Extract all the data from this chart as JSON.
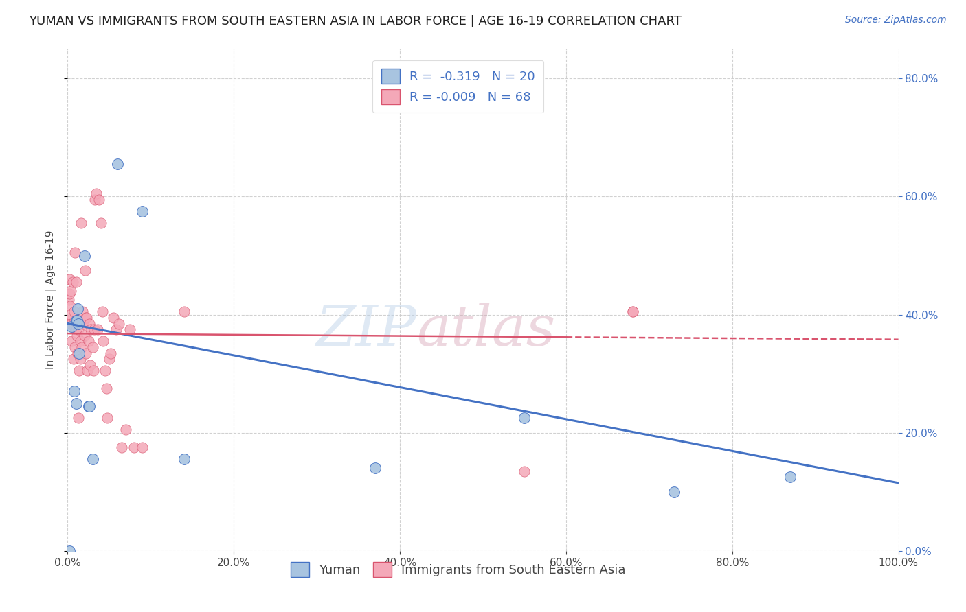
{
  "title": "YUMAN VS IMMIGRANTS FROM SOUTH EASTERN ASIA IN LABOR FORCE | AGE 16-19 CORRELATION CHART",
  "source": "Source: ZipAtlas.com",
  "ylabel": "In Labor Force | Age 16-19",
  "xlim": [
    0.0,
    1.0
  ],
  "ylim": [
    0.0,
    0.85
  ],
  "yuman_r": "-0.319",
  "yuman_n": "20",
  "immigrants_r": "-0.009",
  "immigrants_n": "68",
  "yuman_color": "#a8c4e0",
  "immigrants_color": "#f4a8b8",
  "yuman_line_color": "#4472c4",
  "immigrants_line_color": "#d9546e",
  "background_color": "#ffffff",
  "grid_color": "#cccccc",
  "yuman_scatter": [
    [
      0.002,
      0.0
    ],
    [
      0.005,
      0.38
    ],
    [
      0.008,
      0.27
    ],
    [
      0.01,
      0.25
    ],
    [
      0.01,
      0.39
    ],
    [
      0.011,
      0.39
    ],
    [
      0.012,
      0.41
    ],
    [
      0.013,
      0.385
    ],
    [
      0.014,
      0.335
    ],
    [
      0.02,
      0.5
    ],
    [
      0.025,
      0.245
    ],
    [
      0.026,
      0.245
    ],
    [
      0.03,
      0.155
    ],
    [
      0.06,
      0.655
    ],
    [
      0.09,
      0.575
    ],
    [
      0.14,
      0.155
    ],
    [
      0.37,
      0.14
    ],
    [
      0.55,
      0.225
    ],
    [
      0.73,
      0.1
    ],
    [
      0.87,
      0.125
    ]
  ],
  "immigrants_scatter": [
    [
      0.0,
      0.39
    ],
    [
      0.001,
      0.425
    ],
    [
      0.002,
      0.435
    ],
    [
      0.002,
      0.46
    ],
    [
      0.003,
      0.385
    ],
    [
      0.003,
      0.415
    ],
    [
      0.004,
      0.44
    ],
    [
      0.004,
      0.4
    ],
    [
      0.005,
      0.355
    ],
    [
      0.005,
      0.385
    ],
    [
      0.006,
      0.455
    ],
    [
      0.007,
      0.385
    ],
    [
      0.007,
      0.325
    ],
    [
      0.008,
      0.405
    ],
    [
      0.008,
      0.38
    ],
    [
      0.009,
      0.345
    ],
    [
      0.009,
      0.505
    ],
    [
      0.01,
      0.375
    ],
    [
      0.01,
      0.455
    ],
    [
      0.011,
      0.365
    ],
    [
      0.012,
      0.385
    ],
    [
      0.012,
      0.335
    ],
    [
      0.013,
      0.375
    ],
    [
      0.013,
      0.225
    ],
    [
      0.014,
      0.305
    ],
    [
      0.015,
      0.355
    ],
    [
      0.015,
      0.325
    ],
    [
      0.016,
      0.555
    ],
    [
      0.017,
      0.345
    ],
    [
      0.018,
      0.405
    ],
    [
      0.019,
      0.385
    ],
    [
      0.02,
      0.365
    ],
    [
      0.021,
      0.475
    ],
    [
      0.022,
      0.395
    ],
    [
      0.022,
      0.335
    ],
    [
      0.023,
      0.395
    ],
    [
      0.024,
      0.305
    ],
    [
      0.025,
      0.355
    ],
    [
      0.026,
      0.385
    ],
    [
      0.027,
      0.315
    ],
    [
      0.028,
      0.375
    ],
    [
      0.03,
      0.345
    ],
    [
      0.031,
      0.305
    ],
    [
      0.032,
      0.375
    ],
    [
      0.033,
      0.595
    ],
    [
      0.034,
      0.605
    ],
    [
      0.036,
      0.375
    ],
    [
      0.038,
      0.595
    ],
    [
      0.04,
      0.555
    ],
    [
      0.042,
      0.405
    ],
    [
      0.043,
      0.355
    ],
    [
      0.045,
      0.305
    ],
    [
      0.047,
      0.275
    ],
    [
      0.048,
      0.225
    ],
    [
      0.05,
      0.325
    ],
    [
      0.052,
      0.335
    ],
    [
      0.055,
      0.395
    ],
    [
      0.058,
      0.375
    ],
    [
      0.062,
      0.385
    ],
    [
      0.065,
      0.175
    ],
    [
      0.07,
      0.205
    ],
    [
      0.075,
      0.375
    ],
    [
      0.08,
      0.175
    ],
    [
      0.09,
      0.175
    ],
    [
      0.14,
      0.405
    ],
    [
      0.55,
      0.135
    ],
    [
      0.68,
      0.405
    ],
    [
      0.68,
      0.405
    ]
  ],
  "yuman_trendline": [
    [
      0.0,
      0.385
    ],
    [
      1.0,
      0.115
    ]
  ],
  "immigrants_trendline_solid": [
    [
      0.0,
      0.368
    ],
    [
      0.6,
      0.362
    ]
  ],
  "immigrants_trendline_dashed": [
    [
      0.6,
      0.362
    ],
    [
      1.0,
      0.358
    ]
  ],
  "xticks": [
    0.0,
    0.2,
    0.4,
    0.6,
    0.8,
    1.0
  ],
  "yticks_right": [
    0.0,
    0.2,
    0.4,
    0.6,
    0.8
  ],
  "legend_labels": [
    "Yuman",
    "Immigrants from South Eastern Asia"
  ],
  "watermark_zip": "ZIP",
  "watermark_atlas": "atlas",
  "title_fontsize": 13,
  "axis_label_fontsize": 11,
  "tick_fontsize": 11,
  "legend_fontsize": 13
}
